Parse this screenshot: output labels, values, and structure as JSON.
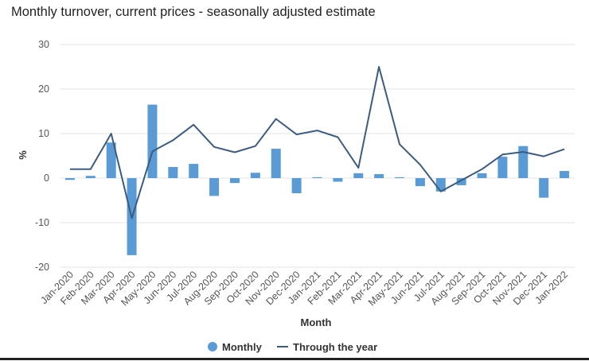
{
  "chart_data": {
    "type": "bar",
    "title": "Monthly turnover, current prices - seasonally adjusted estimate",
    "xlabel": "Month",
    "ylabel": "%",
    "ylim": [
      -20,
      30
    ],
    "yticks": [
      30,
      20,
      10,
      0,
      -10,
      -20
    ],
    "grid": true,
    "legend_position": "bottom",
    "categories": [
      "Jan-2020",
      "Feb-2020",
      "Mar-2020",
      "Apr-2020",
      "May-2020",
      "Jun-2020",
      "Jul-2020",
      "Aug-2020",
      "Sep-2020",
      "Oct-2020",
      "Nov-2020",
      "Dec-2020",
      "Jan-2021",
      "Feb-2021",
      "Mar-2021",
      "Apr-2021",
      "May-2021",
      "Jun-2021",
      "Jul-2021",
      "Aug-2021",
      "Sep-2021",
      "Oct-2021",
      "Nov-2021",
      "Dec-2021",
      "Jan-2022"
    ],
    "series": [
      {
        "name": "Monthly",
        "type": "bar",
        "color": "#5b9bd5",
        "values": [
          -0.4,
          0.5,
          8.0,
          -17.3,
          16.5,
          2.5,
          3.2,
          -4.0,
          -1.1,
          1.2,
          6.6,
          -3.4,
          0.2,
          -0.8,
          1.1,
          0.9,
          0.2,
          -1.8,
          -3.0,
          -1.6,
          1.1,
          4.8,
          7.2,
          -4.4,
          1.6
        ]
      },
      {
        "name": "Through the year",
        "type": "line",
        "color": "#3b5b80",
        "values": [
          2.0,
          2.0,
          10.0,
          -9.0,
          6.0,
          8.5,
          12.0,
          7.0,
          5.8,
          7.2,
          13.3,
          9.8,
          10.7,
          9.2,
          2.3,
          25.0,
          7.6,
          3.0,
          -3.0,
          -0.5,
          2.0,
          5.3,
          5.9,
          4.9,
          6.5
        ]
      }
    ]
  },
  "legend": {
    "monthly_label": "Monthly",
    "through_label": "Through the year"
  }
}
